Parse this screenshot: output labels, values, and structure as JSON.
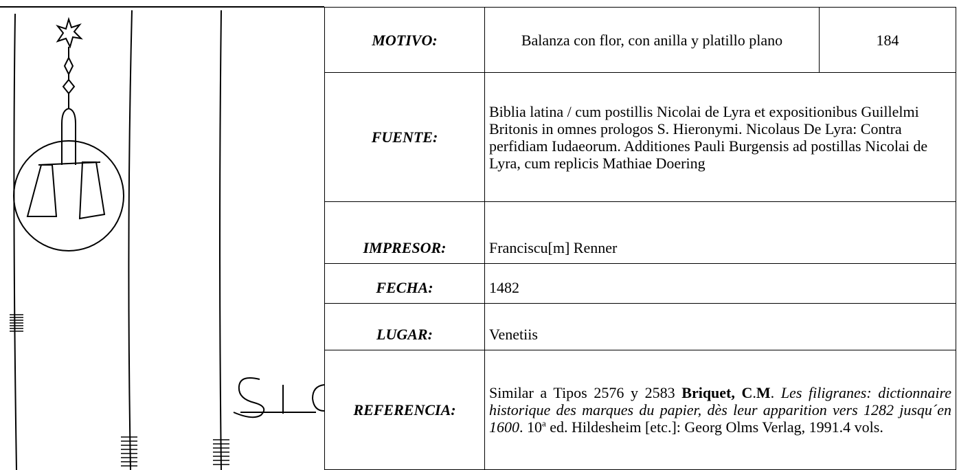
{
  "table": {
    "rows": [
      {
        "label": "MOTIVO:",
        "value": "Balanza con flor, con anilla y platillo plano",
        "number": "184"
      },
      {
        "label": "FUENTE:",
        "value": "Biblia latina / cum postillis Nicolai de Lyra et expositionibus Guillelmi Britonis in omnes prologos S. Hieronymi. Nicolaus De Lyra: Contra perfidiam Iudaeorum. Additiones Pauli Burgensis ad postillas Nicolai de Lyra, cum replicis Mathiae Doering"
      },
      {
        "label": "IMPRESOR:",
        "value": "Franciscu[m] Renner"
      },
      {
        "label": "FECHA:",
        "value": "1482"
      },
      {
        "label": "LUGAR:",
        "value": "Venetiis"
      },
      {
        "label": "REFERENCIA:",
        "parts": [
          "Similar a Tipos 2576 y 2583 ",
          "Briquet, C",
          ".",
          "M",
          ". ",
          "Les filigranes: dictionnaire historique des marques du papier, dès leur apparition vers 1282 jusqu´en 1600",
          ". 10",
          "a",
          " ed. Hildesheim [etc.]: Georg Olms Verlag, 1991.4 vols."
        ]
      }
    ]
  }
}
